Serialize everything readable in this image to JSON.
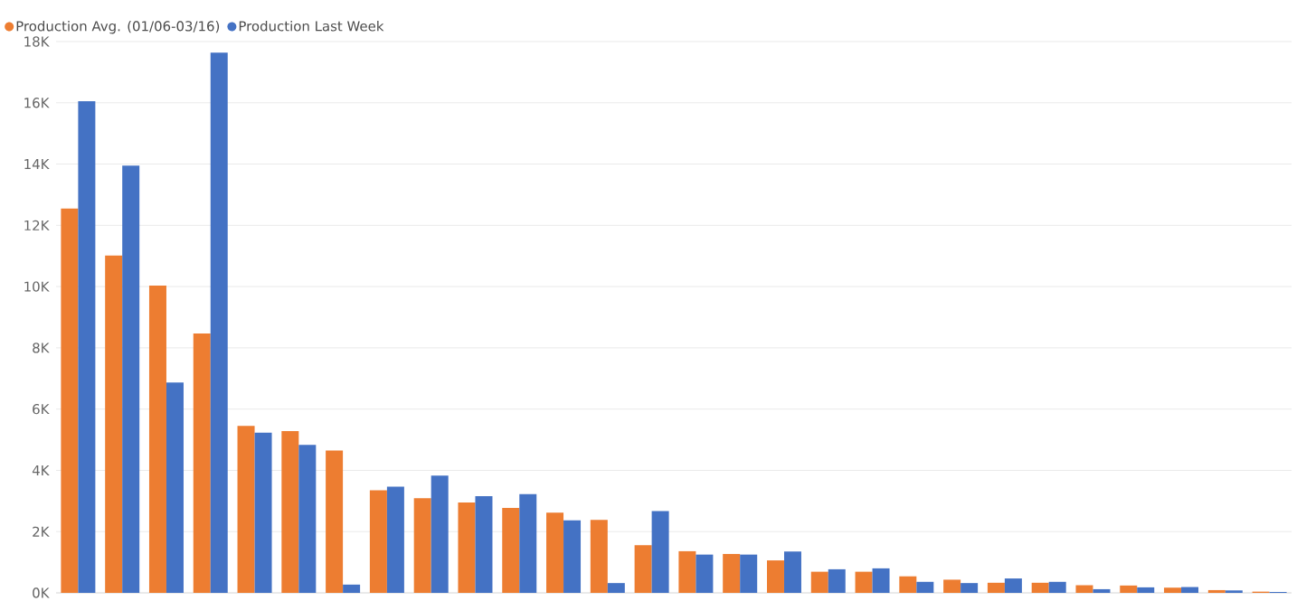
{
  "chart_data": {
    "type": "bar",
    "categories": [
      null,
      null,
      null,
      null,
      null,
      null,
      null,
      null,
      null,
      null,
      null,
      null,
      null,
      null,
      null,
      null,
      null,
      null,
      null,
      null,
      null,
      null,
      null,
      null,
      null,
      null,
      null,
      null
    ],
    "series": [
      {
        "name": "Production Avg. (01/06-03/16)",
        "color": "#ed7d31",
        "values": [
          12.55,
          11.01,
          10.03,
          8.47,
          5.45,
          5.28,
          4.65,
          3.35,
          3.09,
          2.95,
          2.77,
          2.62,
          2.38,
          1.56,
          1.36,
          1.27,
          1.06,
          0.69,
          0.69,
          0.54,
          0.43,
          0.33,
          0.33,
          0.25,
          0.24,
          0.17,
          0.09,
          0.04
        ]
      },
      {
        "name": "Production Last Week",
        "color": "#4472c4",
        "values": [
          16.05,
          13.95,
          6.87,
          17.64,
          5.23,
          4.83,
          0.27,
          3.47,
          3.83,
          3.16,
          3.22,
          2.37,
          0.32,
          2.67,
          1.25,
          1.25,
          1.35,
          0.77,
          0.8,
          0.36,
          0.32,
          0.47,
          0.36,
          0.12,
          0.18,
          0.19,
          0.08,
          0.03
        ]
      }
    ],
    "ylim": [
      0,
      18
    ],
    "yticks": [
      {
        "value": 0,
        "label": "0K"
      },
      {
        "value": 2,
        "label": "2K"
      },
      {
        "value": 4,
        "label": "4K"
      },
      {
        "value": 6,
        "label": "6K"
      },
      {
        "value": 8,
        "label": "8K"
      },
      {
        "value": 10,
        "label": "10K"
      },
      {
        "value": 12,
        "label": "12K"
      },
      {
        "value": 14,
        "label": "14K"
      },
      {
        "value": 16,
        "label": "16K"
      },
      {
        "value": 18,
        "label": "18K"
      }
    ],
    "grid": "y",
    "legend": "top left",
    "tick_labels": "y"
  }
}
